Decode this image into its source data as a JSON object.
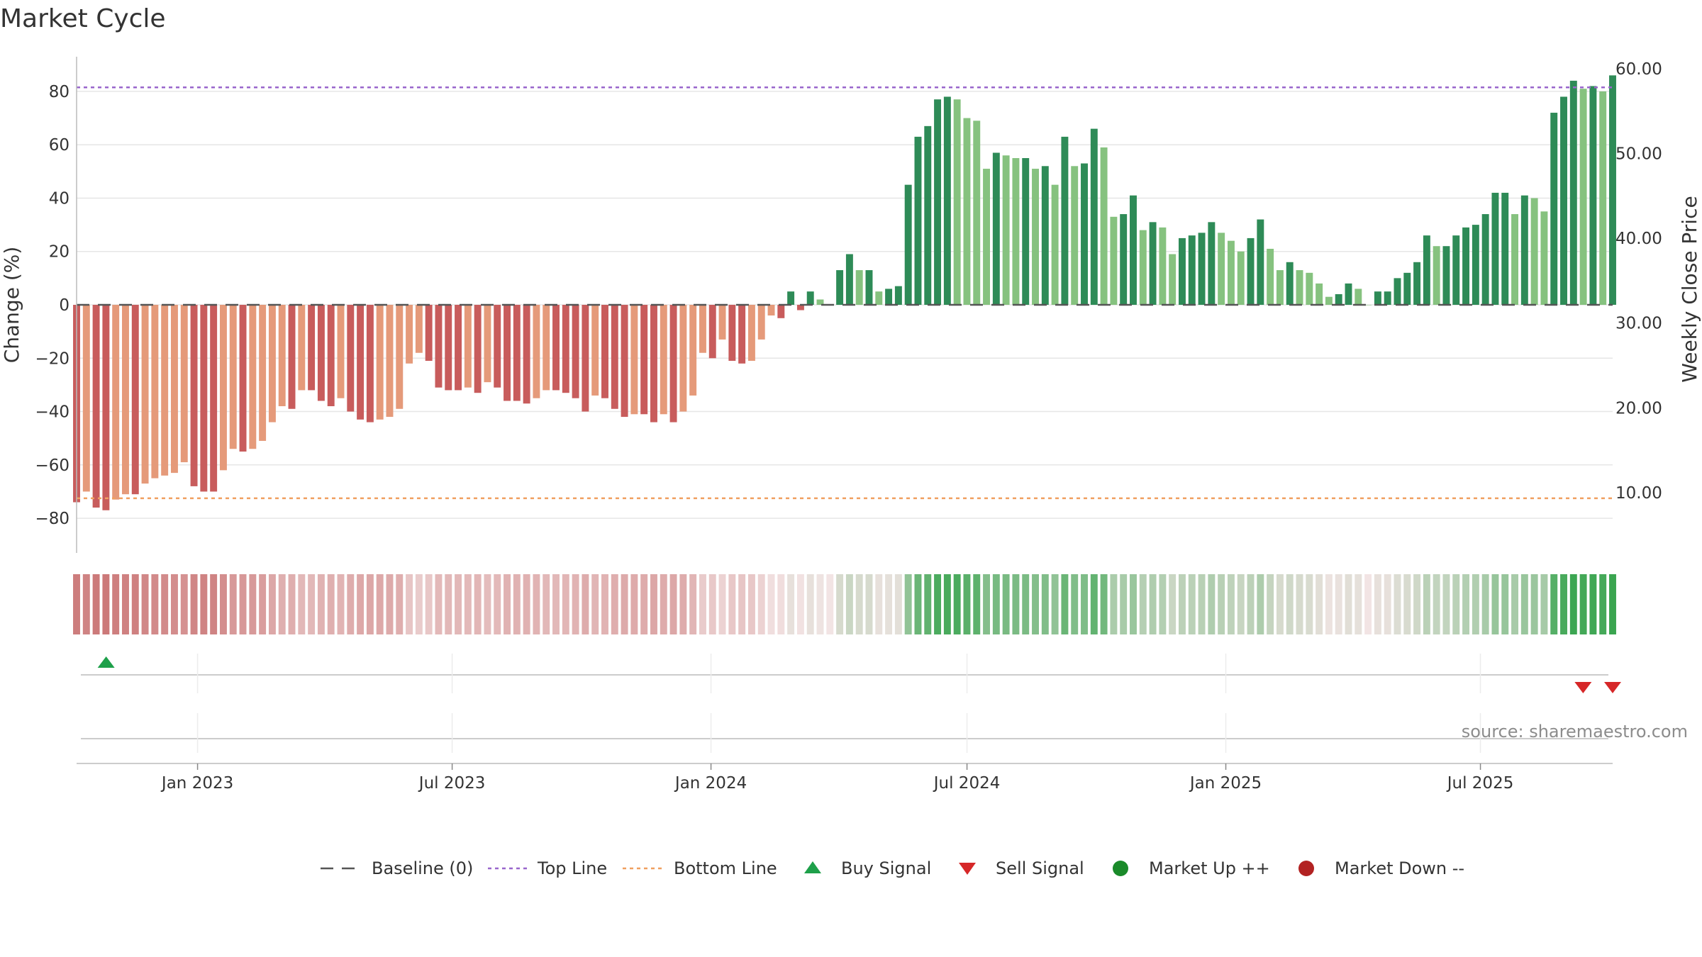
{
  "chart_data": {
    "type": "bar",
    "title": "Market Cycle",
    "ylabel_left": "Change (%)",
    "ylabel_right": "Weekly Close Price",
    "ylim_left": [
      -93,
      93
    ],
    "left_ticks": [
      80,
      60,
      40,
      20,
      0,
      -20,
      -40,
      -60,
      -80
    ],
    "left_tick_labels": [
      "80",
      "60",
      "40",
      "20",
      "0",
      "−20",
      "−40",
      "−60",
      "−80"
    ],
    "right_ticks": [
      60,
      50,
      40,
      30,
      20,
      10
    ],
    "right_tick_labels": [
      "60.00",
      "50.00",
      "40.00",
      "30.00",
      "20.00",
      "10.00"
    ],
    "ylim_right": [
      2.9,
      61.4
    ],
    "top_line": 81.5,
    "bottom_line": -72.5,
    "x_start": "2022-10-07",
    "x_end": "2025-10-03",
    "x_ticks": [
      "2023-01-01",
      "2023-07-01",
      "2024-01-01",
      "2024-07-01",
      "2025-01-01",
      "2025-07-01"
    ],
    "x_tick_labels": [
      "Jan 2023",
      "Jul 2023",
      "Jan 2024",
      "Jul 2024",
      "Jan 2025",
      "Jul 2025"
    ],
    "values": [
      -74,
      -70,
      -76,
      -77,
      -73,
      -71,
      -71,
      -67,
      -65,
      -64,
      -63,
      -59,
      -68,
      -70,
      -70,
      -62,
      -54,
      -55,
      -54,
      -51,
      -44,
      -38,
      -39,
      -32,
      -32,
      -36,
      -38,
      -35,
      -40,
      -43,
      -44,
      -43,
      -42,
      -39,
      -22,
      -18,
      -21,
      -31,
      -32,
      -32,
      -31,
      -33,
      -29,
      -31,
      -36,
      -36,
      -37,
      -35,
      -32,
      -32,
      -33,
      -35,
      -40,
      -34,
      -35,
      -39,
      -42,
      -41,
      -41,
      -44,
      -41,
      -44,
      -40,
      -34,
      -18,
      -20,
      -13,
      -21,
      -22,
      -21,
      -13,
      -4,
      -5,
      5,
      -2,
      5,
      2,
      0,
      13,
      19,
      13,
      13,
      5,
      6,
      7,
      45,
      63,
      67,
      77,
      78,
      77,
      70,
      69,
      51,
      57,
      56,
      55,
      55,
      51,
      52,
      45,
      63,
      52,
      53,
      66,
      59,
      33,
      34,
      41,
      28,
      31,
      29,
      19,
      25,
      26,
      27,
      31,
      27,
      24,
      20,
      25,
      32,
      21,
      13,
      16,
      13,
      12,
      8,
      3,
      4,
      8,
      6,
      0,
      5,
      5,
      10,
      12,
      16,
      26,
      22,
      22,
      26,
      29,
      30,
      34,
      42,
      42,
      34,
      41,
      40,
      35,
      72,
      78,
      84,
      81,
      82,
      80,
      86
    ],
    "bar_colors": {
      "dark_red": "#c85c5c",
      "light_red": "#e59a7a",
      "dark_green": "#2e8b57",
      "light_green": "#86c27f"
    },
    "line_colors": {
      "baseline": "#555555",
      "top_line": "#9966cc",
      "bottom_line": "#f0a060"
    },
    "buy_signals": [
      "2022-10-28"
    ],
    "sell_signals": [
      "2025-09-12",
      "2025-10-03"
    ],
    "marker_colors": {
      "buy": "#1ea04a",
      "sell": "#d62728",
      "market_up": "#1a8a2a",
      "market_down": "#b22222"
    },
    "legend": [
      "Baseline (0)",
      "Top Line",
      "Bottom Line",
      "Buy Signal",
      "Sell Signal",
      "Market Up ++",
      "Market Down --"
    ],
    "legend_position": "bottom-center",
    "source": "source: sharemaestro.com"
  }
}
